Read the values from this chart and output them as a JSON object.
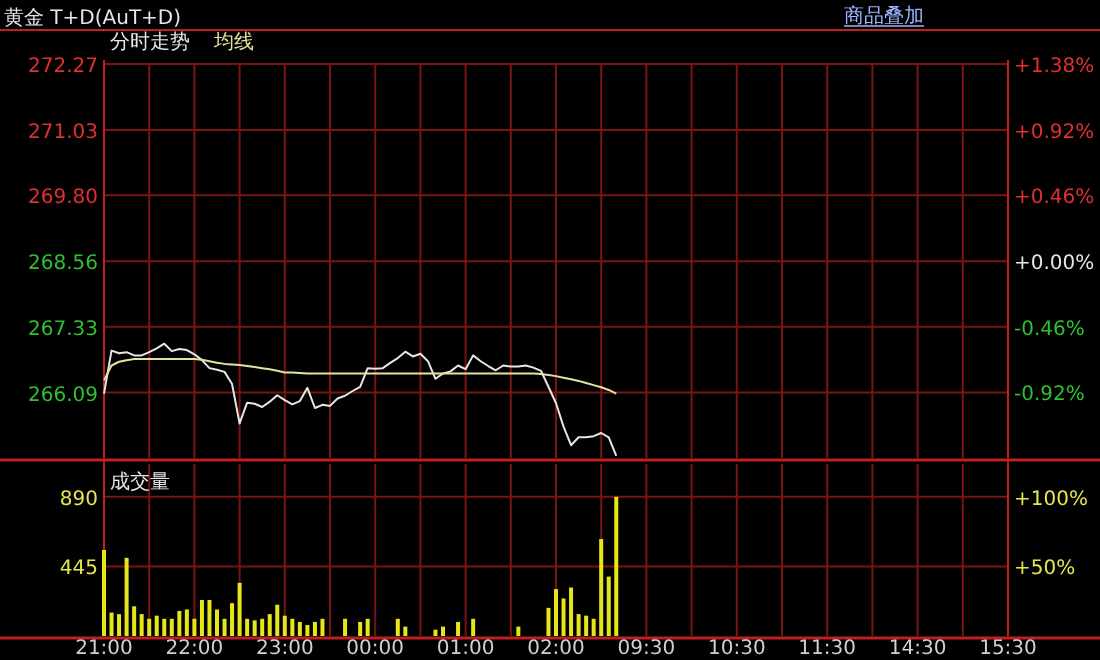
{
  "chart_data": [
    {
      "type": "line",
      "title": "黄金 T+D(AuT+D)",
      "annotations": [
        "商品叠加"
      ],
      "legend": "top left",
      "grid": true,
      "tick_labels": "y",
      "categories": [
        null,
        null,
        null,
        null,
        null,
        null,
        null,
        null,
        null,
        null,
        null,
        null,
        null,
        null,
        null,
        null,
        null,
        null,
        null,
        null,
        null,
        null,
        null,
        null,
        null,
        null,
        null,
        null,
        null,
        null,
        null,
        null,
        null,
        null,
        null,
        null,
        null,
        null,
        null,
        null,
        null,
        null,
        null,
        null,
        null,
        null,
        null,
        null,
        null,
        null,
        null,
        null,
        null,
        null,
        null,
        null,
        null,
        null,
        null,
        null,
        null,
        null,
        null,
        null,
        null,
        null,
        null,
        null,
        null,
        null,
        null,
        null,
        null,
        null,
        null,
        null,
        null,
        null,
        null,
        null,
        null,
        null,
        null,
        null,
        null,
        null,
        null,
        null,
        null,
        null,
        null,
        null,
        null,
        null,
        null,
        null,
        null,
        null,
        null,
        null,
        null,
        null,
        null,
        null,
        null,
        null,
        null,
        null,
        null,
        null,
        null,
        null,
        null,
        null,
        null,
        null,
        null,
        null,
        null,
        null,
        null
      ],
      "ylim": [
        264.86,
        272.27
      ],
      "yticks": [
        266.09,
        267.33,
        268.56,
        {
          "value": 269.8,
          "label": "269.80"
        },
        271.03,
        272.27
      ],
      "y2lim": [
        -1.38,
        1.38
      ],
      "y2ticks": [
        {
          "value": -0.92,
          "label": "-0.92%"
        },
        {
          "value": -0.46,
          "label": "-0.46%"
        },
        {
          "value": 0,
          "label": "+0.00%"
        },
        {
          "value": 0.46,
          "label": "+0.46%"
        },
        {
          "value": 0.92,
          "label": "+0.92%"
        },
        {
          "value": 1.38,
          "label": "+1.38%"
        }
      ],
      "series": [
        {
          "name": "分时走势",
          "color": "#e6e6e6",
          "values": [
            266.07,
            266.88,
            266.83,
            266.85,
            266.79,
            266.79,
            266.85,
            266.92,
            267.01,
            266.87,
            266.91,
            266.89,
            266.81,
            266.7,
            266.55,
            266.52,
            266.48,
            266.25,
            265.51,
            265.9,
            265.88,
            265.82,
            265.92,
            266.04,
            265.95,
            265.87,
            265.93,
            266.18,
            265.8,
            265.86,
            265.84,
            265.98,
            266.03,
            266.12,
            266.2,
            266.55,
            266.54,
            266.55,
            266.65,
            266.74,
            266.86,
            266.77,
            266.82,
            266.68,
            266.35,
            266.45,
            266.49,
            266.6,
            266.53,
            266.79,
            266.68,
            266.59,
            266.51,
            266.6,
            266.58,
            266.58,
            266.6,
            266.56,
            266.5,
            266.2,
            265.89,
            265.45,
            265.1,
            265.25,
            265.25,
            265.27,
            265.33,
            265.25,
            264.9,
            null,
            null,
            null,
            null,
            null,
            null,
            null,
            null,
            null,
            null,
            null,
            null,
            null,
            null,
            null,
            null,
            null,
            null,
            null,
            null,
            null,
            null,
            null,
            null,
            null,
            null,
            null,
            null,
            null,
            null,
            null,
            null,
            null,
            null,
            null,
            null,
            null,
            null,
            null,
            null,
            null,
            null,
            null,
            null,
            null,
            null,
            null,
            null,
            null,
            null,
            null,
            null
          ]
        },
        {
          "name": "均线",
          "color": "#e8e0a0",
          "values": [
            266.32,
            266.6,
            266.67,
            266.7,
            266.72,
            266.72,
            266.72,
            266.72,
            266.72,
            266.72,
            266.72,
            266.72,
            266.72,
            266.71,
            266.68,
            266.65,
            266.63,
            266.62,
            266.61,
            266.59,
            266.57,
            266.55,
            266.53,
            266.5,
            266.47,
            266.47,
            266.46,
            266.45,
            266.45,
            266.45,
            266.45,
            266.45,
            266.45,
            266.45,
            266.45,
            266.45,
            266.45,
            266.45,
            266.45,
            266.45,
            266.45,
            266.45,
            266.45,
            266.45,
            266.45,
            266.45,
            266.45,
            266.45,
            266.45,
            266.45,
            266.45,
            266.45,
            266.45,
            266.45,
            266.45,
            266.45,
            266.45,
            266.45,
            266.44,
            266.42,
            266.4,
            266.37,
            266.34,
            266.31,
            266.27,
            266.23,
            266.19,
            266.14,
            266.07,
            null,
            null,
            null,
            null,
            null,
            null,
            null,
            null,
            null,
            null,
            null,
            null,
            null,
            null,
            null,
            null,
            null,
            null,
            null,
            null,
            null,
            null,
            null,
            null,
            null,
            null,
            null,
            null,
            null,
            null,
            null,
            null,
            null,
            null,
            null,
            null,
            null,
            null,
            null,
            null,
            null,
            null,
            null,
            null,
            null,
            null,
            null,
            null,
            null,
            null,
            null,
            null
          ]
        }
      ]
    },
    {
      "type": "bar",
      "title": "成交量",
      "grid": true,
      "categories": [
        "21:00",
        null,
        null,
        null,
        null,
        null,
        null,
        null,
        null,
        null,
        null,
        null,
        "22:00",
        null,
        null,
        null,
        null,
        null,
        null,
        null,
        null,
        null,
        null,
        null,
        "23:00",
        null,
        null,
        null,
        null,
        null,
        null,
        null,
        null,
        null,
        null,
        null,
        "00:00",
        null,
        null,
        null,
        null,
        null,
        null,
        null,
        null,
        null,
        null,
        null,
        "01:00",
        null,
        null,
        null,
        null,
        null,
        null,
        null,
        null,
        null,
        null,
        null,
        "02:00",
        null,
        null,
        null,
        null,
        null,
        null,
        null,
        null,
        null,
        null,
        null,
        "09:30",
        null,
        null,
        null,
        null,
        null,
        null,
        null,
        null,
        null,
        null,
        null,
        "10:30",
        null,
        null,
        null,
        null,
        null,
        null,
        null,
        null,
        null,
        null,
        null,
        "11:30",
        null,
        null,
        null,
        null,
        null,
        null,
        null,
        null,
        null,
        null,
        null,
        "14:30",
        null,
        null,
        null,
        null,
        null,
        null,
        null,
        null,
        null,
        null,
        null,
        "15:30"
      ],
      "ylim": [
        0,
        1100
      ],
      "yticks": [
        445,
        890
      ],
      "y2lim": [
        0,
        123.6
      ],
      "y2ticks": [
        {
          "value": 50,
          "label": "+50%"
        },
        {
          "value": 100,
          "label": "+100%"
        }
      ],
      "series": [
        {
          "color": "#e6e619",
          "values": [
            550,
            150,
            140,
            500,
            190,
            140,
            110,
            130,
            110,
            110,
            160,
            170,
            110,
            230,
            230,
            170,
            110,
            210,
            340,
            110,
            100,
            110,
            140,
            200,
            130,
            110,
            90,
            70,
            90,
            110,
            0,
            0,
            110,
            0,
            90,
            110,
            0,
            0,
            0,
            110,
            60,
            0,
            0,
            0,
            40,
            60,
            0,
            90,
            0,
            110,
            0,
            0,
            0,
            0,
            0,
            60,
            0,
            0,
            0,
            180,
            300,
            240,
            310,
            140,
            130,
            110,
            620,
            380,
            890,
            null,
            null,
            null,
            null,
            null,
            null,
            null,
            null,
            null,
            null,
            null,
            null,
            null,
            null,
            null,
            null,
            null,
            null,
            null,
            null,
            null,
            null,
            null,
            null,
            null,
            null,
            null,
            null,
            null,
            null,
            null,
            null,
            null,
            null,
            null,
            null,
            null,
            null,
            null,
            null,
            null,
            null,
            null,
            null,
            null,
            null,
            null,
            null,
            null,
            null,
            null,
            null
          ]
        }
      ]
    }
  ]
}
